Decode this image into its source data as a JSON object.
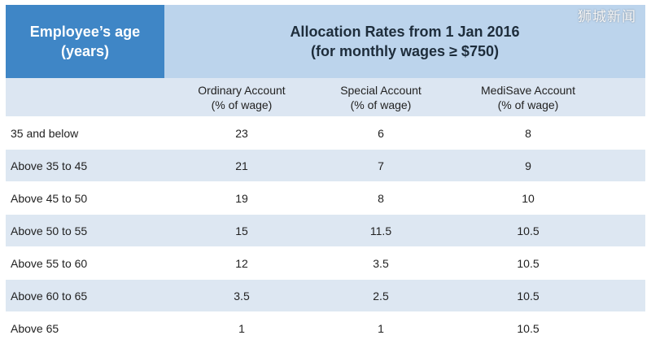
{
  "watermark": "狮城新闻",
  "header": {
    "age_line1": "Employee’s age",
    "age_line2": "(years)",
    "alloc_line1": "Allocation Rates from 1 Jan 2016",
    "alloc_line2": "(for monthly wages ≥ $750)"
  },
  "columns": [
    {
      "name": "Ordinary Account",
      "unit": "(% of wage)"
    },
    {
      "name": "Special Account",
      "unit": "(% of wage)"
    },
    {
      "name": "MediSave Account",
      "unit": "(% of wage)"
    }
  ],
  "rows": [
    {
      "age": "35 and below",
      "values": [
        "23",
        "6",
        "8"
      ]
    },
    {
      "age": "Above 35 to 45",
      "values": [
        "21",
        "7",
        "9"
      ]
    },
    {
      "age": "Above 45 to 50",
      "values": [
        "19",
        "8",
        "10"
      ]
    },
    {
      "age": "Above 50 to 55",
      "values": [
        "15",
        "11.5",
        "10.5"
      ]
    },
    {
      "age": "Above 55 to 60",
      "values": [
        "12",
        "3.5",
        "10.5"
      ]
    },
    {
      "age": "Above 60 to 65",
      "values": [
        "3.5",
        "2.5",
        "10.5"
      ]
    },
    {
      "age": "Above 65",
      "values": [
        "1",
        "1",
        "10.5"
      ]
    }
  ]
}
